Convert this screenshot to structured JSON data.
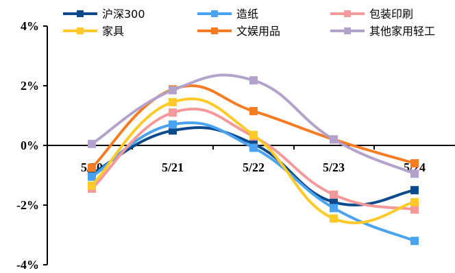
{
  "chart_data": {
    "type": "line",
    "categories": [
      "5/20",
      "5/21",
      "5/22",
      "5/23",
      "5/24"
    ],
    "ylim": [
      -4,
      4
    ],
    "yticks": [
      -4,
      -2,
      0,
      2,
      4
    ],
    "ytick_labels": [
      "-4%",
      "-2%",
      "0%",
      "2%",
      "4%"
    ],
    "grid": false,
    "legend_position": "top",
    "series": [
      {
        "name": "沪深300",
        "color": "#0b4a8b",
        "values": [
          -0.95,
          0.5,
          0.05,
          -1.9,
          -1.5
        ]
      },
      {
        "name": "造纸",
        "color": "#4aa3f0",
        "values": [
          -1.05,
          0.7,
          -0.08,
          -2.1,
          -3.2
        ]
      },
      {
        "name": "包装印刷",
        "color": "#f4999a",
        "values": [
          -1.45,
          1.1,
          0.3,
          -1.65,
          -2.15
        ]
      },
      {
        "name": "家具",
        "color": "#ffca28",
        "values": [
          -1.35,
          1.45,
          0.35,
          -2.45,
          -1.9
        ]
      },
      {
        "name": "文娱用品",
        "color": "#f57c22",
        "values": [
          -0.75,
          1.88,
          1.15,
          0.2,
          -0.6
        ]
      },
      {
        "name": "其他家用轻工",
        "color": "#b3a2cb",
        "values": [
          0.05,
          1.85,
          2.18,
          0.2,
          -0.95
        ]
      }
    ]
  }
}
